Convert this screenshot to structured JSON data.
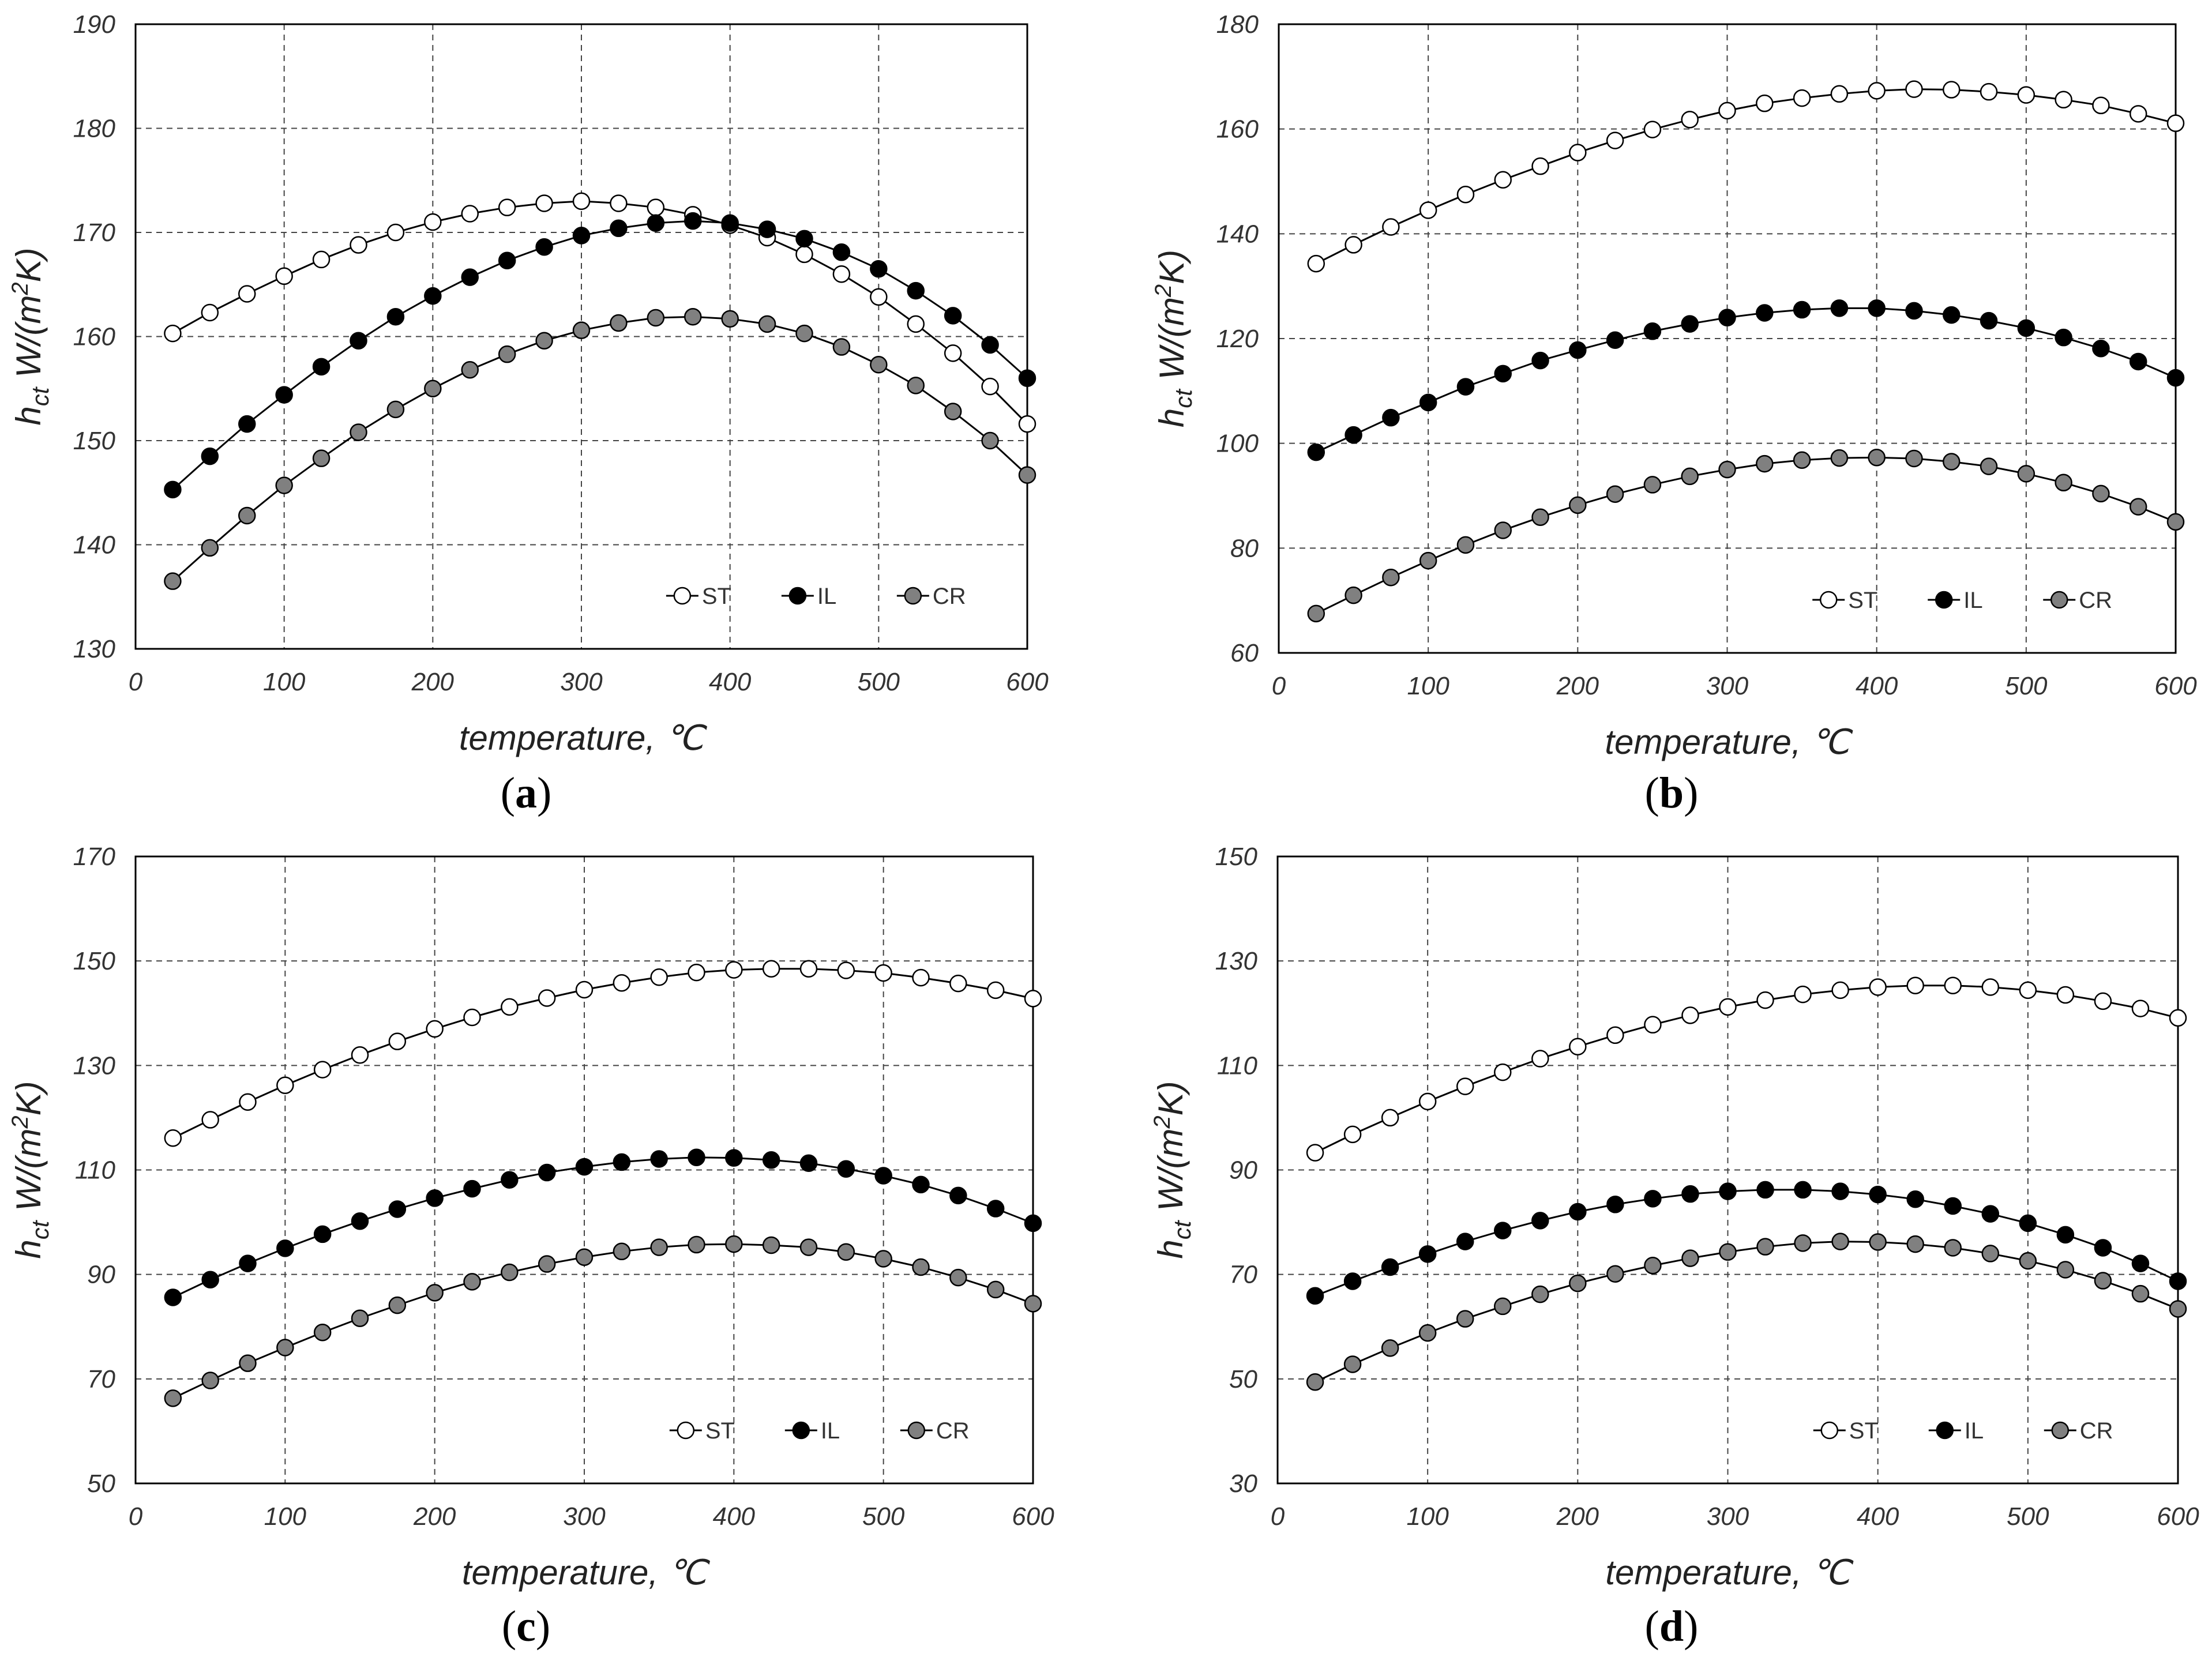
{
  "colors": {
    "ST": "#ffffff",
    "IL": "#000000",
    "CR": "#808080",
    "line": "#000000",
    "grid": "#444444"
  },
  "chart_data": [
    {
      "type": "line",
      "panel_label": "a",
      "xlabel": "temperature, ℃",
      "ylabel_main": "h",
      "ylabel_sub": "ct",
      "ylabel_rest": " W/(m",
      "ylabel_sup": "2",
      "ylabel_end": "K)",
      "xlim": [
        0,
        600
      ],
      "ylim": [
        130,
        190
      ],
      "xticks": [
        0,
        100,
        200,
        300,
        400,
        500,
        600
      ],
      "yticks": [
        130,
        140,
        150,
        160,
        170,
        180,
        190
      ],
      "legend_position": "bottom-right",
      "x": [
        25,
        50,
        75,
        100,
        125,
        150,
        175,
        200,
        225,
        250,
        275,
        300,
        325,
        350,
        375,
        400,
        425,
        450,
        475,
        500,
        525,
        550,
        575,
        600
      ],
      "series": [
        {
          "name": "ST",
          "values": [
            160.3,
            162.3,
            164.1,
            165.8,
            167.4,
            168.8,
            170.0,
            171.0,
            171.8,
            172.4,
            172.8,
            173.0,
            172.8,
            172.4,
            171.7,
            170.7,
            169.5,
            167.9,
            166.0,
            163.8,
            161.2,
            158.4,
            155.2,
            151.6
          ]
        },
        {
          "name": "IL",
          "values": [
            145.3,
            148.5,
            151.6,
            154.4,
            157.1,
            159.6,
            161.9,
            163.9,
            165.7,
            167.3,
            168.6,
            169.7,
            170.4,
            170.9,
            171.1,
            170.9,
            170.3,
            169.4,
            168.1,
            166.5,
            164.4,
            162.0,
            159.2,
            156.0
          ]
        },
        {
          "name": "CR",
          "values": [
            136.5,
            139.7,
            142.8,
            145.7,
            148.3,
            150.8,
            153.0,
            155.0,
            156.8,
            158.3,
            159.6,
            160.6,
            161.3,
            161.8,
            161.9,
            161.7,
            161.2,
            160.3,
            159.0,
            157.3,
            155.3,
            152.8,
            150.0,
            146.7
          ]
        }
      ]
    },
    {
      "type": "line",
      "panel_label": "b",
      "xlabel": "temperature, ℃",
      "ylabel_main": "h",
      "ylabel_sub": "ct",
      "ylabel_rest": " W/(m",
      "ylabel_sup": "2",
      "ylabel_end": "K)",
      "xlim": [
        0,
        600
      ],
      "ylim": [
        60,
        180
      ],
      "xticks": [
        0,
        100,
        200,
        300,
        400,
        500,
        600
      ],
      "yticks": [
        60,
        80,
        100,
        120,
        140,
        160,
        180
      ],
      "legend_position": "bottom-right",
      "x": [
        25,
        50,
        75,
        100,
        125,
        150,
        175,
        200,
        225,
        250,
        275,
        300,
        325,
        350,
        375,
        400,
        425,
        450,
        475,
        500,
        525,
        550,
        575,
        600
      ],
      "series": [
        {
          "name": "ST",
          "values": [
            134.3,
            137.9,
            141.3,
            144.5,
            147.5,
            150.3,
            152.9,
            155.5,
            157.8,
            159.9,
            161.8,
            163.5,
            164.9,
            165.9,
            166.7,
            167.3,
            167.6,
            167.5,
            167.1,
            166.5,
            165.6,
            164.5,
            162.9,
            161.1
          ]
        },
        {
          "name": "IL",
          "values": [
            98.3,
            101.6,
            104.9,
            107.8,
            110.8,
            113.3,
            115.8,
            117.8,
            119.7,
            121.4,
            122.8,
            124.0,
            124.9,
            125.5,
            125.8,
            125.8,
            125.3,
            124.5,
            123.4,
            122.0,
            120.2,
            118.1,
            115.6,
            112.5
          ]
        },
        {
          "name": "CR",
          "values": [
            67.5,
            71.0,
            74.4,
            77.6,
            80.6,
            83.4,
            85.9,
            88.2,
            90.3,
            92.1,
            93.7,
            95.0,
            96.1,
            96.8,
            97.2,
            97.3,
            97.1,
            96.5,
            95.6,
            94.2,
            92.5,
            90.4,
            87.9,
            85.0
          ]
        }
      ]
    },
    {
      "type": "line",
      "panel_label": "c",
      "xlabel": "temperature, ℃",
      "ylabel_main": "h",
      "ylabel_sub": "ct",
      "ylabel_rest": " W/(m",
      "ylabel_sup": "2",
      "ylabel_end": "K)",
      "xlim": [
        0,
        600
      ],
      "ylim": [
        50,
        170
      ],
      "xticks": [
        0,
        100,
        200,
        300,
        400,
        500,
        600
      ],
      "yticks": [
        50,
        70,
        90,
        110,
        130,
        150,
        170
      ],
      "legend_position": "bottom-right",
      "x": [
        25,
        50,
        75,
        100,
        125,
        150,
        175,
        200,
        225,
        250,
        275,
        300,
        325,
        350,
        375,
        400,
        425,
        450,
        475,
        500,
        525,
        550,
        575,
        600
      ],
      "series": [
        {
          "name": "ST",
          "values": [
            116.1,
            119.6,
            123.0,
            126.2,
            129.2,
            132.0,
            134.6,
            137.0,
            139.2,
            141.2,
            142.9,
            144.5,
            145.8,
            146.9,
            147.8,
            148.3,
            148.5,
            148.5,
            148.2,
            147.7,
            146.8,
            145.7,
            144.4,
            142.8
          ]
        },
        {
          "name": "IL",
          "values": [
            85.6,
            89.0,
            92.1,
            95.0,
            97.7,
            100.2,
            102.5,
            104.6,
            106.4,
            108.1,
            109.5,
            110.6,
            111.5,
            112.1,
            112.4,
            112.3,
            111.9,
            111.3,
            110.2,
            108.9,
            107.2,
            105.1,
            102.6,
            99.8
          ]
        },
        {
          "name": "CR",
          "values": [
            66.3,
            69.7,
            73.0,
            76.0,
            78.9,
            81.6,
            84.1,
            86.5,
            88.6,
            90.4,
            92.0,
            93.3,
            94.4,
            95.2,
            95.7,
            95.8,
            95.6,
            95.2,
            94.3,
            93.0,
            91.4,
            89.4,
            87.1,
            84.4
          ]
        }
      ]
    },
    {
      "type": "line",
      "panel_label": "d",
      "xlabel": "temperature, ℃",
      "ylabel_main": "h",
      "ylabel_sub": "ct",
      "ylabel_rest": " W/(m",
      "ylabel_sup": "2",
      "ylabel_end": "K)",
      "xlim": [
        0,
        600
      ],
      "ylim": [
        30,
        150
      ],
      "xticks": [
        0,
        100,
        200,
        300,
        400,
        500,
        600
      ],
      "yticks": [
        30,
        50,
        70,
        90,
        110,
        130,
        150
      ],
      "legend_position": "bottom-right",
      "x": [
        25,
        50,
        75,
        100,
        125,
        150,
        175,
        200,
        225,
        250,
        275,
        300,
        325,
        350,
        375,
        400,
        425,
        450,
        475,
        500,
        525,
        550,
        575,
        600
      ],
      "series": [
        {
          "name": "ST",
          "values": [
            93.3,
            96.8,
            100.0,
            103.1,
            106.0,
            108.7,
            111.3,
            113.6,
            115.8,
            117.8,
            119.6,
            121.2,
            122.5,
            123.6,
            124.4,
            125.0,
            125.3,
            125.3,
            125.0,
            124.4,
            123.5,
            122.3,
            120.9,
            119.1
          ]
        },
        {
          "name": "IL",
          "values": [
            65.9,
            68.7,
            71.4,
            73.9,
            76.3,
            78.4,
            80.3,
            82.0,
            83.4,
            84.5,
            85.4,
            85.9,
            86.2,
            86.2,
            85.9,
            85.3,
            84.4,
            83.1,
            81.6,
            79.8,
            77.6,
            75.1,
            72.1,
            68.7
          ]
        },
        {
          "name": "CR",
          "values": [
            49.4,
            52.8,
            55.9,
            58.8,
            61.5,
            63.9,
            66.2,
            68.3,
            70.1,
            71.7,
            73.1,
            74.3,
            75.3,
            76.0,
            76.3,
            76.2,
            75.8,
            75.1,
            74.0,
            72.6,
            70.9,
            68.8,
            66.3,
            63.4
          ]
        }
      ]
    }
  ]
}
